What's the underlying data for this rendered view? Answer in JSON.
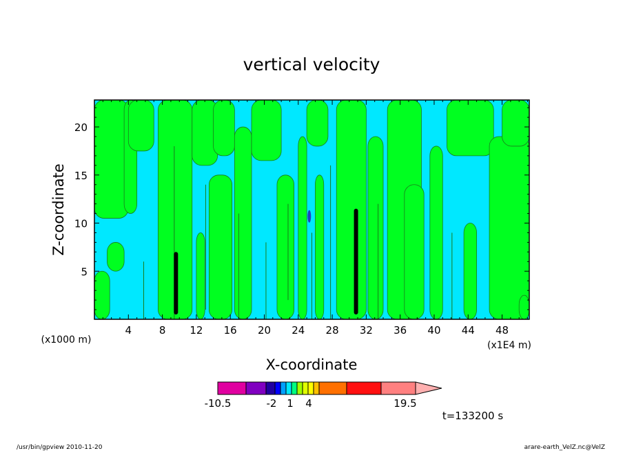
{
  "chart_data": {
    "type": "heatmap",
    "title": "vertical velocity",
    "xlabel": "X-coordinate",
    "ylabel": "Z-coordinate",
    "x_unit_label": "(x1000 m)",
    "x_scale_label": "(x1E4 m)",
    "xlim": [
      0,
      51.2
    ],
    "ylim": [
      0,
      22.8
    ],
    "x_ticks": [
      4,
      8,
      12,
      16,
      20,
      24,
      28,
      32,
      36,
      40,
      44,
      48
    ],
    "y_ticks": [
      5,
      10,
      15,
      20
    ],
    "legend_labels": [
      {
        "text": "-10.5",
        "value": -10.5
      },
      {
        "text": "-2",
        "value": -2
      },
      {
        "text": "1",
        "value": 1
      },
      {
        "text": "4",
        "value": 4
      },
      {
        "text": "19.5",
        "value": 19.5
      }
    ],
    "colorbar_levels": [
      -10.5,
      -6.5,
      -3.5,
      -2,
      -1,
      -0.5,
      0,
      0.5,
      1,
      1.5,
      2,
      2.5,
      4,
      7.5,
      11.5,
      15.5,
      19.5
    ],
    "colorbar_colors": [
      "#e000a0",
      "#8000c0",
      "#2000a0",
      "#0000ff",
      "#00a0ff",
      "#00e8ff",
      "#00ff80",
      "#a0ff00",
      "#e0ff00",
      "#ffff00",
      "#ffc000",
      "#ff7000",
      "#ff1010",
      "#ff8080",
      "#ffb0b0",
      "#ffc0c0"
    ],
    "background_colors": {
      "negative": "#00e8ff",
      "positive": "#00ff20",
      "strong_updraft": "#000000",
      "downdraft": "#2040c0"
    },
    "time_label": "t=133200 s"
  },
  "footer": {
    "left": "/usr/bin/gpview   2010-11-20",
    "right": "arare-earth_VelZ.nc@VelZ"
  }
}
